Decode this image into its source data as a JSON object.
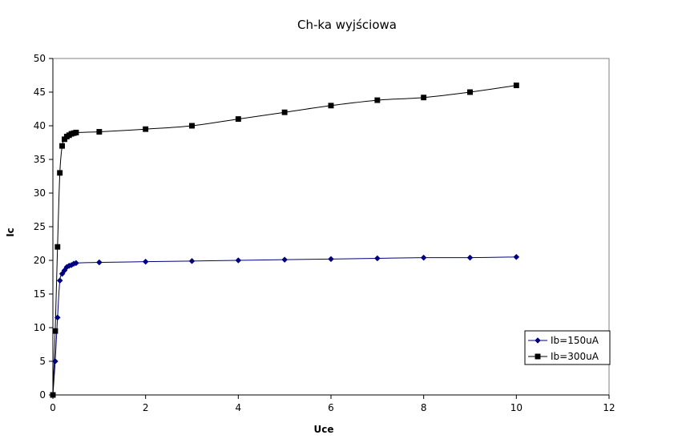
{
  "chart_data": {
    "type": "line",
    "title": "Ch-ka wyjściowa",
    "xlabel": "Uce",
    "ylabel": "Ic",
    "xlim": [
      0,
      12
    ],
    "ylim": [
      0,
      50
    ],
    "xticks": [
      0,
      2,
      4,
      6,
      8,
      10,
      12
    ],
    "yticks": [
      0,
      5,
      10,
      15,
      20,
      25,
      30,
      35,
      40,
      45,
      50
    ],
    "grid": false,
    "legend_position": "right",
    "series": [
      {
        "name": "Ib=150uA",
        "color": "#000080",
        "marker": "diamond",
        "points": [
          [
            0,
            0
          ],
          [
            0.05,
            5
          ],
          [
            0.1,
            11.5
          ],
          [
            0.15,
            17
          ],
          [
            0.2,
            18
          ],
          [
            0.25,
            18.5
          ],
          [
            0.3,
            19
          ],
          [
            0.35,
            19.2
          ],
          [
            0.4,
            19.3
          ],
          [
            0.45,
            19.5
          ],
          [
            0.5,
            19.6
          ],
          [
            1,
            19.7
          ],
          [
            2,
            19.8
          ],
          [
            3,
            19.9
          ],
          [
            4,
            20
          ],
          [
            5,
            20.1
          ],
          [
            6,
            20.2
          ],
          [
            7,
            20.3
          ],
          [
            8,
            20.4
          ],
          [
            9,
            20.4
          ],
          [
            10,
            20.5
          ]
        ]
      },
      {
        "name": "Ib=300uA",
        "color": "#000000",
        "marker": "square",
        "points": [
          [
            0,
            0
          ],
          [
            0.05,
            9.5
          ],
          [
            0.1,
            22
          ],
          [
            0.15,
            33
          ],
          [
            0.2,
            37
          ],
          [
            0.25,
            38
          ],
          [
            0.3,
            38.4
          ],
          [
            0.35,
            38.6
          ],
          [
            0.4,
            38.8
          ],
          [
            0.45,
            38.9
          ],
          [
            0.5,
            39
          ],
          [
            1,
            39.1
          ],
          [
            2,
            39.5
          ],
          [
            3,
            40
          ],
          [
            4,
            41
          ],
          [
            5,
            42
          ],
          [
            6,
            43
          ],
          [
            7,
            43.8
          ],
          [
            8,
            44.2
          ],
          [
            9,
            45
          ],
          [
            10,
            46
          ]
        ]
      }
    ]
  }
}
